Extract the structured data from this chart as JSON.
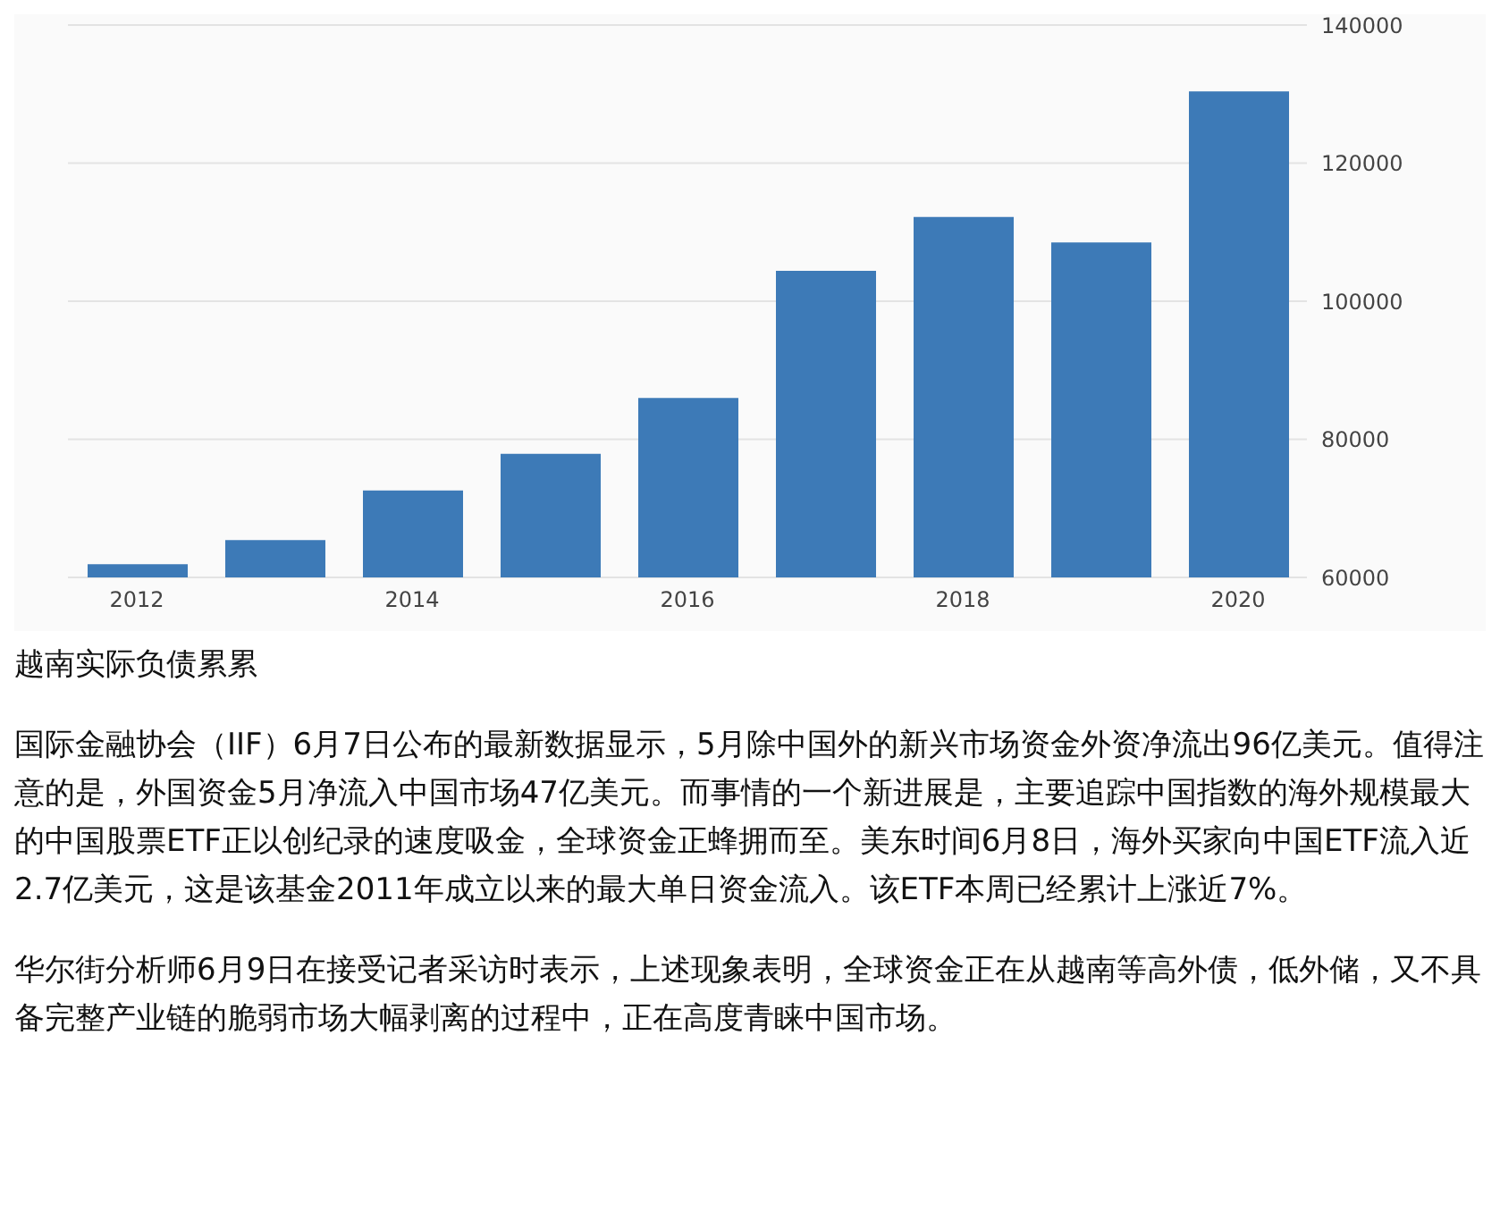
{
  "chart_data": {
    "type": "bar",
    "categories": [
      "2012",
      null,
      "2014",
      null,
      "2016",
      null,
      "2018",
      null,
      "2020"
    ],
    "values": [
      61900,
      65400,
      72600,
      77900,
      86000,
      104400,
      112200,
      108500,
      130400
    ],
    "color": "#3d7ab7",
    "ylim": [
      60000,
      140000
    ],
    "yticks": [
      60000,
      80000,
      100000,
      120000,
      140000
    ],
    "grid": "y",
    "legend": false,
    "annotations": [
      "越南实际负债累累",
      "国际金融协会（IIF）6月7日公布的最新数据显示，5月除中国外的新兴市场资金外资净流出96亿美元。值得注意的是，外国资金5月净流入中国市场47亿美元。而事情的一个新进展是，主要追踪中国指数的海外规模最大的中国股票ETF正以创纪录的速度吸金，全球资金正蜂拥而至。美东时间6月8日，海外买家向中国ETF流入近2.7亿美元，这是该基金2011年成立以来的最大单日资金流入。该ETF本周已经累计上涨近7%。",
      "华尔街分析师6月9日在接受记者采访时表示，上述现象表明，全球资金正在从越南等高外债，低外储，又不具备完整产业链的脆弱市场大幅剥离的过程中，正在高度青睐中国市场。"
    ]
  }
}
